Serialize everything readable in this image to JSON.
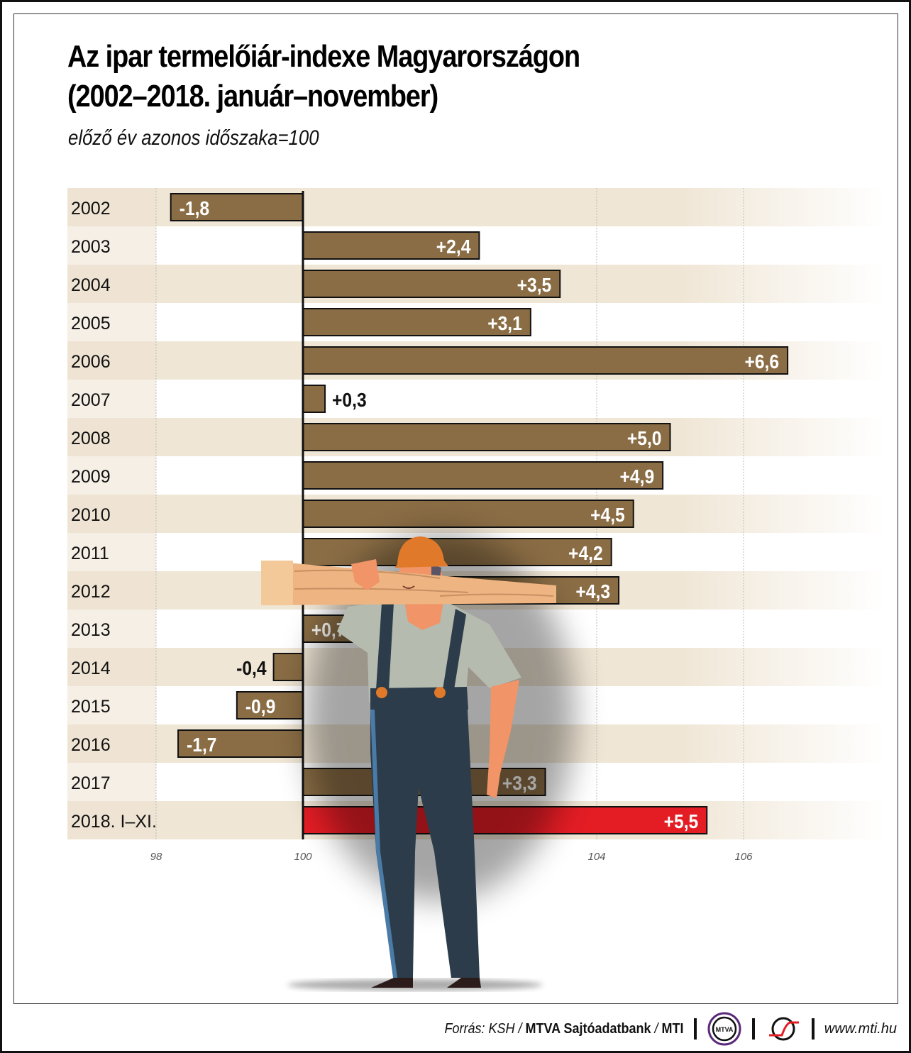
{
  "header": {
    "title_line1": "Az ipar termelőiár-indexe Magyarországon",
    "title_line2": "(2002–2018. január–november)",
    "subtitle": "előző év azonos időszaka=100"
  },
  "footer": {
    "source_prefix": "Forrás: KSH / ",
    "source_bold1": "MTVA Sajtóadatbank",
    "source_sep": " / ",
    "source_bold2": "MTI",
    "logo1_text": "MTVA",
    "url": "www.mti.hu"
  },
  "colors": {
    "bar": "#8a6d45",
    "highlight_bar": "#e41d25",
    "band": "#f0e6d6",
    "label_band_dark": "#efe4d3",
    "label_band_light": "#f6efe5"
  },
  "chart_data": {
    "type": "bar",
    "orientation": "horizontal",
    "title": "Az ipar termelőiár-indexe Magyarországon (2002–2018. január–november)",
    "subtitle": "előző év azonos időszaka=100",
    "baseline": 100,
    "xlim": [
      98,
      108
    ],
    "xticks": [
      98,
      100,
      104,
      106
    ],
    "grid": true,
    "categories": [
      "2002",
      "2003",
      "2004",
      "2005",
      "2006",
      "2007",
      "2008",
      "2009",
      "2010",
      "2011",
      "2012",
      "2013",
      "2014",
      "2015",
      "2016",
      "2017",
      "2018. I–XI."
    ],
    "values": [
      98.2,
      102.4,
      103.5,
      103.1,
      106.6,
      100.3,
      105.0,
      104.9,
      104.5,
      104.2,
      104.3,
      100.7,
      99.6,
      99.1,
      98.3,
      103.3,
      105.5
    ],
    "labels": [
      "-1,8",
      "+2,4",
      "+3,5",
      "+3,1",
      "+6,6",
      "+0,3",
      "+5,0",
      "+4,9",
      "+4,5",
      "+4,2",
      "+4,3",
      "+0,7",
      "-0,4",
      "-0,9",
      "-1,7",
      "+3,3",
      "+5,5"
    ],
    "highlight_index": 16
  }
}
